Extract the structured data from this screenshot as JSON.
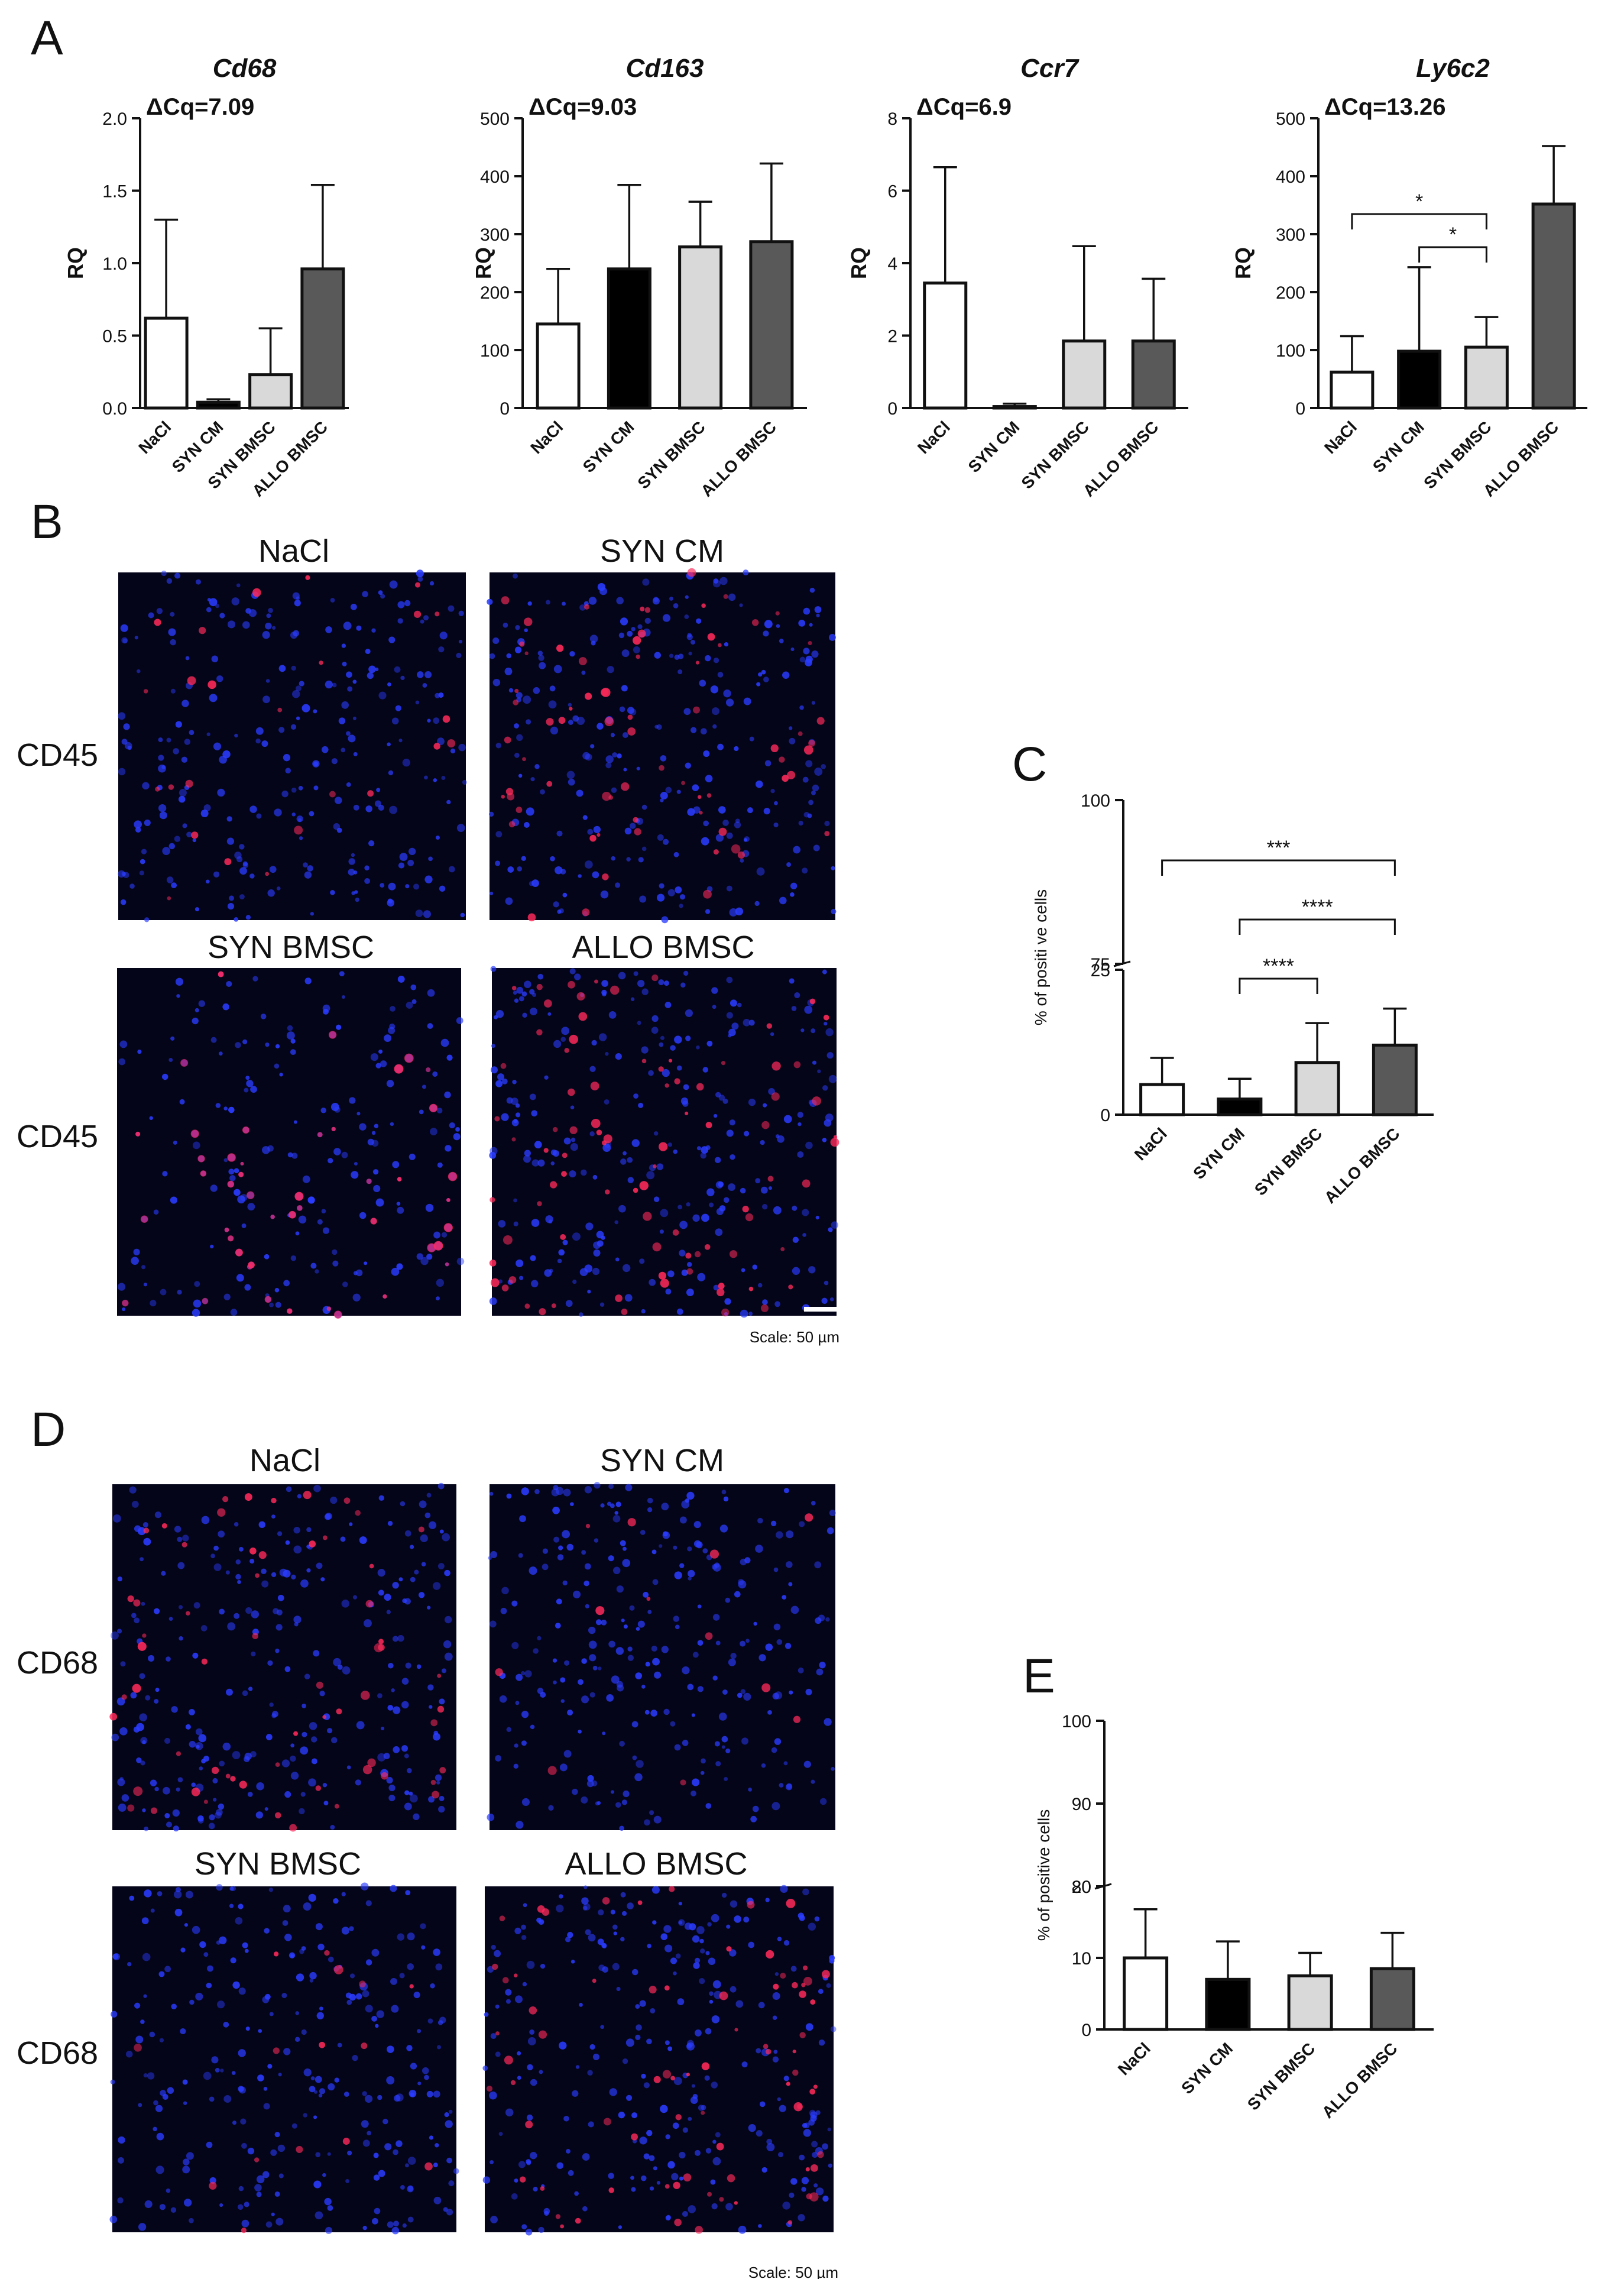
{
  "colors": {
    "NaCl": "#ffffff",
    "SYN CM": "#000000",
    "SYN BMSC": "#d9d9d9",
    "ALLO BMSC": "#595959",
    "micro_background": "#05051a",
    "nuclei_stain": "#2a3cff",
    "marker_stain": "#ff2a5a"
  },
  "panel_labels": {
    "a": "A",
    "b": "B",
    "c": "C",
    "d": "D",
    "e": "E"
  },
  "panel_b": {
    "col_headers": [
      "NaCl",
      "SYN CM",
      "SYN BMSC",
      "ALLO BMSC"
    ],
    "row_labels": [
      "CD45",
      "CD45"
    ],
    "scale_label": "Scale: 50 µm",
    "marker": "CD45"
  },
  "panel_d": {
    "col_headers": [
      "NaCl",
      "SYN CM",
      "SYN BMSC",
      "ALLO BMSC"
    ],
    "row_labels": [
      "CD68",
      "CD68"
    ],
    "scale_label": "Scale: 50 µm",
    "marker": "CD68"
  },
  "chart_data": [
    {
      "id": "A-Cd68",
      "type": "bar",
      "title": "Cd68",
      "annotation": "ΔCq=7.09",
      "ylabel": "RQ",
      "categories": [
        "NaCl",
        "SYN CM",
        "SYN BMSC",
        "ALLO BMSC"
      ],
      "values": [
        0.62,
        0.04,
        0.23,
        0.96
      ],
      "errors": [
        0.68,
        0.02,
        0.32,
        0.58
      ],
      "ylim": [
        0,
        2.0
      ],
      "yticks": [
        "0.0",
        "0.5",
        "1.0",
        "1.5",
        "2.0"
      ],
      "significance": []
    },
    {
      "id": "A-Cd163",
      "type": "bar",
      "title": "Cd163",
      "annotation": "ΔCq=9.03",
      "ylabel": "RQ",
      "categories": [
        "NaCl",
        "SYN CM",
        "SYN BMSC",
        "ALLO BMSC"
      ],
      "values": [
        145,
        240,
        278,
        287
      ],
      "errors": [
        95,
        145,
        78,
        135
      ],
      "ylim": [
        0,
        500
      ],
      "yticks": [
        "0",
        "100",
        "200",
        "300",
        "400",
        "500"
      ],
      "significance": []
    },
    {
      "id": "A-Ccr7",
      "type": "bar",
      "title": "Ccr7",
      "annotation": "ΔCq=6.9",
      "ylabel": "RQ",
      "categories": [
        "NaCl",
        "SYN CM",
        "SYN BMSC",
        "ALLO BMSC"
      ],
      "values": [
        3.45,
        0.04,
        1.85,
        1.85
      ],
      "errors": [
        3.2,
        0.08,
        2.62,
        1.72
      ],
      "ylim": [
        0,
        8
      ],
      "yticks": [
        "0",
        "2",
        "4",
        "6",
        "8"
      ],
      "significance": []
    },
    {
      "id": "A-Ly6c2",
      "type": "bar",
      "title": "Ly6c2",
      "annotation": "ΔCq=13.26",
      "ylabel": "RQ",
      "categories": [
        "NaCl",
        "SYN CM",
        "SYN BMSC",
        "ALLO BMSC"
      ],
      "values": [
        62,
        98,
        105,
        352
      ],
      "errors": [
        62,
        145,
        52,
        100
      ],
      "ylim": [
        0,
        500
      ],
      "yticks": [
        "0",
        "100",
        "200",
        "300",
        "400",
        "500"
      ],
      "significance": [
        {
          "from": 0,
          "to": 2,
          "label": "*"
        },
        {
          "from": 1,
          "to": 2,
          "label": "*"
        }
      ]
    },
    {
      "id": "C",
      "type": "bar",
      "title": "",
      "ylabel": "% of positi ve cells",
      "categories": [
        "NaCl",
        "SYN CM",
        "SYN BMSC",
        "ALLO BMSC"
      ],
      "values": [
        5.2,
        2.7,
        9.0,
        12.0
      ],
      "errors": [
        4.6,
        3.5,
        6.8,
        6.3
      ],
      "axis_break": {
        "lower": [
          0,
          25
        ],
        "upper": [
          75,
          100
        ]
      },
      "yticks": [
        "0",
        "25",
        "75",
        "100"
      ],
      "significance": [
        {
          "from": 0,
          "to": 3,
          "label": "***"
        },
        {
          "from": 1,
          "to": 3,
          "label": "****"
        },
        {
          "from": 1,
          "to": 2,
          "label": "****"
        }
      ]
    },
    {
      "id": "E",
      "type": "bar",
      "title": "",
      "ylabel": "% of positive cells",
      "categories": [
        "NaCl",
        "SYN CM",
        "SYN BMSC",
        "ALLO BMSC"
      ],
      "values": [
        10.0,
        7.0,
        7.5,
        8.5
      ],
      "errors": [
        6.8,
        5.3,
        3.2,
        5.0
      ],
      "axis_break": {
        "lower": [
          0,
          20
        ],
        "upper": [
          80,
          100
        ]
      },
      "yticks": [
        "0",
        "10",
        "20",
        "80",
        "90",
        "100"
      ],
      "significance": []
    }
  ]
}
